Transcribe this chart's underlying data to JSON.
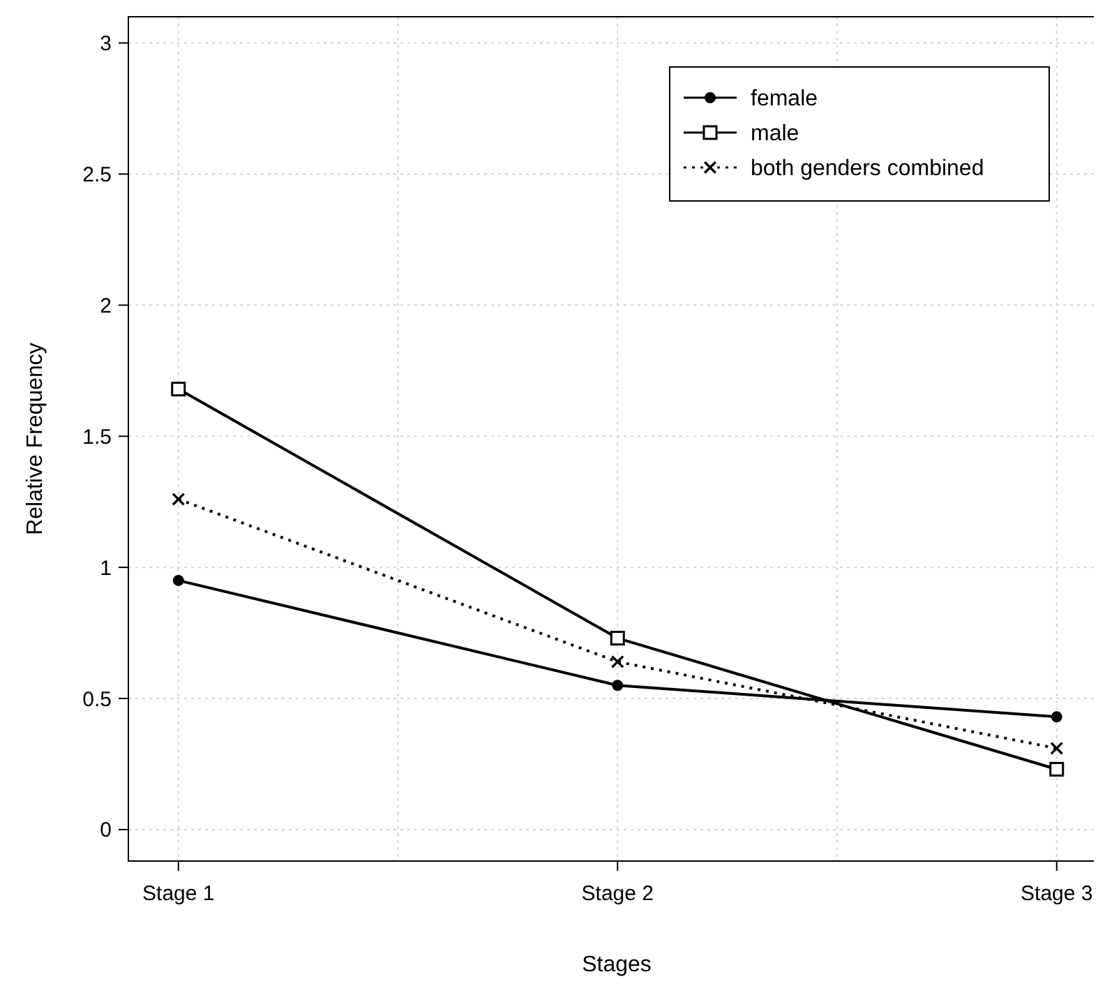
{
  "chart_data": {
    "type": "line",
    "xlabel": "Stages",
    "ylabel": "Relative Frequency",
    "categories": [
      "Stage 1",
      "Stage 2",
      "Stage 3"
    ],
    "series": [
      {
        "name": "female",
        "color": "#000000",
        "values": [
          0.95,
          0.55,
          0.43
        ],
        "marker": "circle",
        "line_style": "solid"
      },
      {
        "name": "male",
        "color": "#000000",
        "values": [
          1.68,
          0.73,
          0.23
        ],
        "marker": "square",
        "line_style": "solid"
      },
      {
        "name": "both genders combined",
        "color": "#000000",
        "values": [
          1.26,
          0.64,
          0.31
        ],
        "marker": "cross",
        "line_style": "dotted"
      }
    ],
    "ylim": [
      -0.12,
      3.1
    ],
    "yticks": [
      0,
      0.5,
      1,
      1.5,
      2,
      2.5,
      3
    ],
    "grid": true,
    "legend": "top right"
  }
}
